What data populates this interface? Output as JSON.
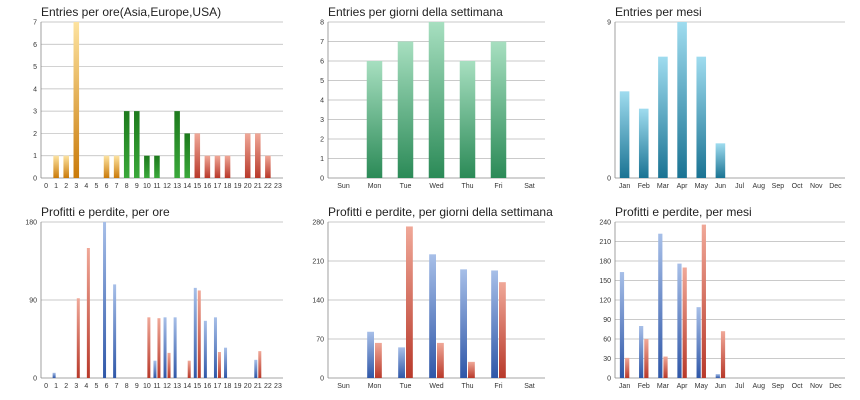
{
  "colors": {
    "orange": [
      "#fde3a0",
      "#c97a0a"
    ],
    "green": [
      "#1d7a1d",
      "#3aa83a"
    ],
    "teal": [
      "#a7dfc0",
      "#2b8a57"
    ],
    "cyan": [
      "#9fdcef",
      "#1a7393"
    ],
    "blue": [
      "#a7bfe8",
      "#2f57a8"
    ],
    "red": [
      "#f0a898",
      "#b8392a"
    ]
  },
  "chart_data": [
    {
      "type": "bar",
      "title": "Entries per ore(Asia,Europe,USA)",
      "categories": [
        "0",
        "1",
        "2",
        "3",
        "4",
        "5",
        "6",
        "7",
        "8",
        "9",
        "10",
        "11",
        "12",
        "13",
        "14",
        "15",
        "16",
        "17",
        "18",
        "19",
        "20",
        "21",
        "22",
        "23"
      ],
      "ylim": [
        0,
        7
      ],
      "yticks": [
        "0",
        "1",
        "2",
        "3",
        "4",
        "5",
        "6",
        "7"
      ],
      "values": [
        0,
        1,
        1,
        7,
        0,
        0,
        1,
        1,
        3,
        3,
        1,
        1,
        0,
        3,
        2,
        2,
        1,
        1,
        1,
        0,
        2,
        2,
        1,
        0
      ],
      "colors": [
        "orange",
        "orange",
        "orange",
        "orange",
        "orange",
        "orange",
        "orange",
        "orange",
        "green",
        "green",
        "green",
        "green",
        "green",
        "green",
        "green",
        "red",
        "red",
        "red",
        "red",
        "red",
        "red",
        "red",
        "red",
        "red"
      ]
    },
    {
      "type": "bar",
      "title": "Entries per giorni della settimana",
      "categories": [
        "Sun",
        "Mon",
        "Tue",
        "Wed",
        "Thu",
        "Fri",
        "Sat"
      ],
      "ylim": [
        0,
        8
      ],
      "yticks": [
        "0",
        "1",
        "2",
        "3",
        "4",
        "5",
        "6",
        "7",
        "8"
      ],
      "values": [
        0,
        6,
        7,
        8,
        6,
        7,
        0
      ],
      "color": "teal"
    },
    {
      "type": "bar",
      "title": "Entries per mesi",
      "categories": [
        "Jan",
        "Feb",
        "Mar",
        "Apr",
        "May",
        "Jun",
        "Jul",
        "Aug",
        "Sep",
        "Oct",
        "Nov",
        "Dec"
      ],
      "ylim": [
        0,
        9
      ],
      "yticks": [
        "0",
        "9"
      ],
      "values": [
        5,
        4,
        7,
        9,
        7,
        2,
        0,
        0,
        0,
        0,
        0,
        0
      ],
      "color": "cyan"
    },
    {
      "type": "bar",
      "title": "Profitti e perdite, per ore",
      "categories": [
        "0",
        "1",
        "2",
        "3",
        "4",
        "5",
        "6",
        "7",
        "8",
        "9",
        "10",
        "11",
        "12",
        "13",
        "14",
        "15",
        "16",
        "17",
        "18",
        "19",
        "20",
        "21",
        "22",
        "23"
      ],
      "ylim": [
        0,
        180
      ],
      "yticks": [
        "0",
        "90",
        "180"
      ],
      "series": [
        {
          "values": [
            0,
            6,
            0,
            0,
            0,
            0,
            180,
            108,
            0,
            0,
            0,
            20,
            70,
            70,
            0,
            104,
            66,
            70,
            35,
            0,
            0,
            21,
            0,
            0
          ],
          "color": "blue"
        },
        {
          "values": [
            0,
            0,
            0,
            92,
            150,
            0,
            0,
            0,
            0,
            0,
            70,
            69,
            29,
            0,
            20,
            101,
            0,
            30,
            0,
            0,
            0,
            31,
            0,
            0
          ],
          "color": "red"
        }
      ]
    },
    {
      "type": "bar",
      "title": "Profitti e perdite, per giorni della settimana",
      "categories": [
        "Sun",
        "Mon",
        "Tue",
        "Wed",
        "Thu",
        "Fri",
        "Sat"
      ],
      "ylim": [
        0,
        280
      ],
      "yticks": [
        "0",
        "70",
        "140",
        "210",
        "280"
      ],
      "series": [
        {
          "values": [
            0,
            83,
            55,
            222,
            195,
            193,
            0
          ],
          "color": "blue"
        },
        {
          "values": [
            0,
            63,
            272,
            63,
            29,
            172,
            0
          ],
          "color": "red"
        }
      ]
    },
    {
      "type": "bar",
      "title": "Profitti e perdite, per mesi",
      "categories": [
        "Jan",
        "Feb",
        "Mar",
        "Apr",
        "May",
        "Jun",
        "Jul",
        "Aug",
        "Sep",
        "Oct",
        "Nov",
        "Dec"
      ],
      "ylim": [
        0,
        240
      ],
      "yticks": [
        "0",
        "30",
        "60",
        "90",
        "120",
        "150",
        "180",
        "210",
        "240"
      ],
      "series": [
        {
          "values": [
            163,
            80,
            222,
            176,
            109,
            6,
            0,
            0,
            0,
            0,
            0,
            0
          ],
          "color": "blue"
        },
        {
          "values": [
            31,
            60,
            33,
            170,
            236,
            72,
            0,
            0,
            0,
            0,
            0,
            0
          ],
          "color": "red"
        }
      ]
    }
  ]
}
